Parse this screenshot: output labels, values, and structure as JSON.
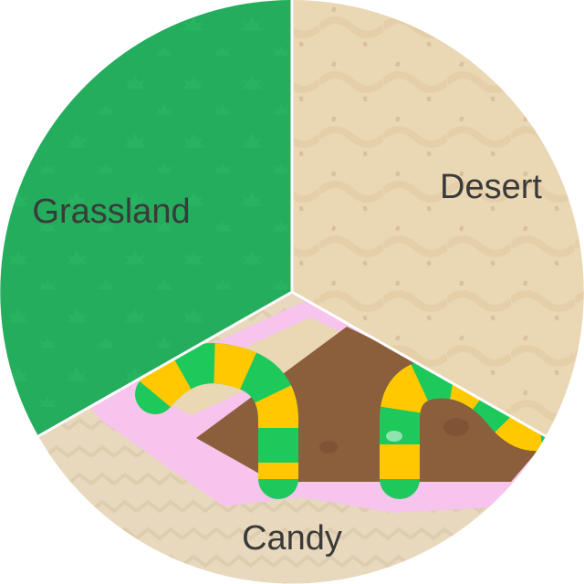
{
  "wheel": {
    "sectors": [
      {
        "id": "grassland",
        "label": "Grassland",
        "color": "#23ad5c",
        "pattern": "leaf-icon"
      },
      {
        "id": "desert",
        "label": "Desert",
        "color": "#ead7b4",
        "pattern": "sand-dune-icon"
      },
      {
        "id": "candy",
        "label": "Candy",
        "color": "#e8d8bd",
        "pattern": "candy-road-icon"
      }
    ],
    "colors": {
      "divider": "#ffffff",
      "candy_pink": "#f7c4ee",
      "chocolate": "#8b5e3c",
      "candy_green": "#1ec95c",
      "candy_yellow": "#ffc800"
    }
  }
}
